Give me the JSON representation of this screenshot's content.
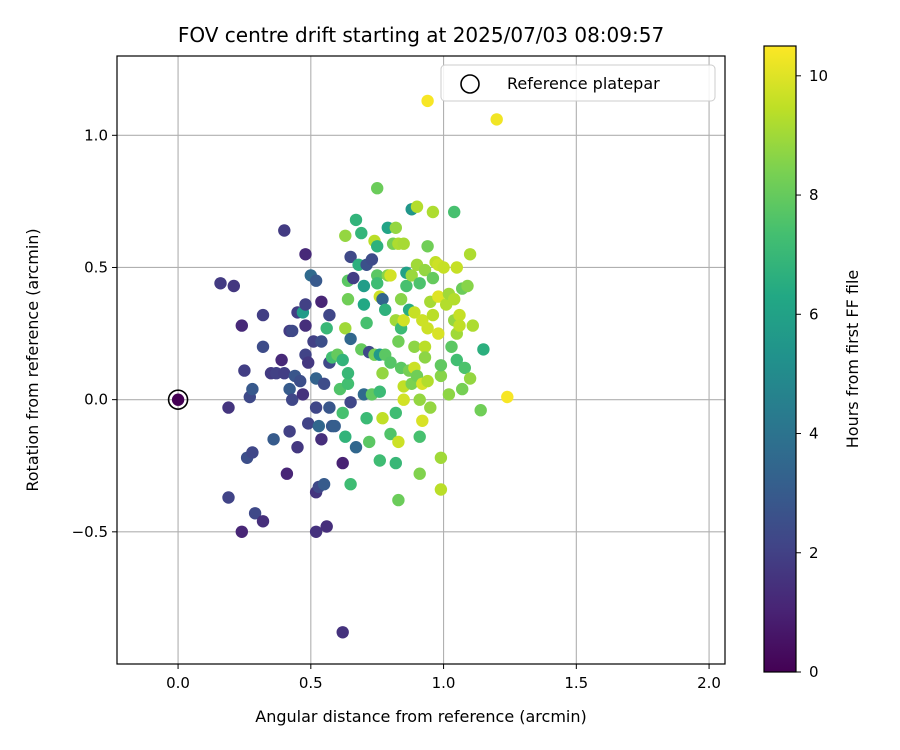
{
  "chart_data": {
    "type": "scatter",
    "title": "FOV centre drift starting at 2025/07/03 08:09:57",
    "xlabel": "Angular distance from reference (arcmin)",
    "ylabel": "Rotation from reference (arcmin)",
    "xlim": [
      -0.23,
      2.06
    ],
    "ylim": [
      -1.0,
      1.3
    ],
    "xticks": [
      0.0,
      0.5,
      1.0,
      1.5,
      2.0
    ],
    "xtick_labels": [
      "0.0",
      "0.5",
      "1.0",
      "1.5",
      "2.0"
    ],
    "yticks": [
      -0.5,
      0.0,
      0.5,
      1.0
    ],
    "ytick_labels": [
      "−0.5",
      "0.0",
      "0.5",
      "1.0"
    ],
    "grid": true,
    "legend": {
      "position": "top-right",
      "entries": [
        "Reference platepar"
      ]
    },
    "reference_point": {
      "x": 0.0,
      "y": 0.0
    },
    "colorbar": {
      "label": "Hours from first FF file",
      "colormap": "viridis",
      "range": [
        0,
        10.5
      ],
      "ticks": [
        0,
        2,
        4,
        6,
        8,
        10
      ],
      "tick_labels": [
        "0",
        "2",
        "4",
        "6",
        "8",
        "10"
      ]
    },
    "points": [
      {
        "x": 0.0,
        "y": 0.0,
        "c": 0.0
      },
      {
        "x": 0.19,
        "y": -0.03,
        "c": 1.6
      },
      {
        "x": 0.16,
        "y": 0.44,
        "c": 1.8
      },
      {
        "x": 0.21,
        "y": 0.43,
        "c": 1.7
      },
      {
        "x": 0.24,
        "y": 0.28,
        "c": 1.2
      },
      {
        "x": 0.25,
        "y": 0.11,
        "c": 1.9
      },
      {
        "x": 0.27,
        "y": 0.01,
        "c": 2.3
      },
      {
        "x": 0.28,
        "y": 0.04,
        "c": 2.9
      },
      {
        "x": 0.32,
        "y": 0.32,
        "c": 1.9
      },
      {
        "x": 0.32,
        "y": 0.2,
        "c": 2.4
      },
      {
        "x": 0.19,
        "y": -0.37,
        "c": 2.1
      },
      {
        "x": 0.24,
        "y": -0.5,
        "c": 1.1
      },
      {
        "x": 0.26,
        "y": -0.22,
        "c": 2.5
      },
      {
        "x": 0.28,
        "y": -0.2,
        "c": 2.2
      },
      {
        "x": 0.29,
        "y": -0.43,
        "c": 2.3
      },
      {
        "x": 0.32,
        "y": -0.46,
        "c": 1.4
      },
      {
        "x": 0.36,
        "y": -0.15,
        "c": 3.0
      },
      {
        "x": 0.35,
        "y": 0.1,
        "c": 1.8
      },
      {
        "x": 0.37,
        "y": 0.1,
        "c": 2.0
      },
      {
        "x": 0.39,
        "y": 0.15,
        "c": 1.2
      },
      {
        "x": 0.4,
        "y": 0.1,
        "c": 1.9
      },
      {
        "x": 0.4,
        "y": 0.64,
        "c": 1.8
      },
      {
        "x": 0.41,
        "y": -0.28,
        "c": 1.1
      },
      {
        "x": 0.42,
        "y": 0.04,
        "c": 3.0
      },
      {
        "x": 0.42,
        "y": -0.12,
        "c": 2.0
      },
      {
        "x": 0.42,
        "y": 0.26,
        "c": 1.8
      },
      {
        "x": 0.43,
        "y": 0.26,
        "c": 2.3
      },
      {
        "x": 0.43,
        "y": 0.0,
        "c": 2.2
      },
      {
        "x": 0.44,
        "y": 0.09,
        "c": 2.8
      },
      {
        "x": 0.45,
        "y": 0.33,
        "c": 1.9
      },
      {
        "x": 0.45,
        "y": -0.18,
        "c": 1.7
      },
      {
        "x": 0.46,
        "y": 0.07,
        "c": 2.5
      },
      {
        "x": 0.47,
        "y": 0.02,
        "c": 1.5
      },
      {
        "x": 0.47,
        "y": 0.33,
        "c": 5.7
      },
      {
        "x": 0.48,
        "y": 0.28,
        "c": 1.4
      },
      {
        "x": 0.48,
        "y": 0.36,
        "c": 2.0
      },
      {
        "x": 0.48,
        "y": 0.17,
        "c": 2.1
      },
      {
        "x": 0.49,
        "y": 0.14,
        "c": 1.7
      },
      {
        "x": 0.48,
        "y": 0.55,
        "c": 1.2
      },
      {
        "x": 0.49,
        "y": -0.09,
        "c": 2.1
      },
      {
        "x": 0.5,
        "y": 0.47,
        "c": 3.6
      },
      {
        "x": 0.51,
        "y": 0.22,
        "c": 2.0
      },
      {
        "x": 0.52,
        "y": 0.08,
        "c": 3.3
      },
      {
        "x": 0.52,
        "y": -0.03,
        "c": 2.2
      },
      {
        "x": 0.52,
        "y": 0.45,
        "c": 2.9
      },
      {
        "x": 0.52,
        "y": -0.35,
        "c": 1.6
      },
      {
        "x": 0.52,
        "y": -0.5,
        "c": 1.5
      },
      {
        "x": 0.53,
        "y": -0.33,
        "c": 2.3
      },
      {
        "x": 0.53,
        "y": -0.1,
        "c": 3.5
      },
      {
        "x": 0.54,
        "y": 0.37,
        "c": 1.1
      },
      {
        "x": 0.54,
        "y": 0.22,
        "c": 2.5
      },
      {
        "x": 0.54,
        "y": -0.15,
        "c": 1.4
      },
      {
        "x": 0.55,
        "y": 0.06,
        "c": 2.4
      },
      {
        "x": 0.55,
        "y": -0.32,
        "c": 3.0
      },
      {
        "x": 0.56,
        "y": 0.27,
        "c": 7.0
      },
      {
        "x": 0.56,
        "y": -0.48,
        "c": 1.4
      },
      {
        "x": 0.57,
        "y": 0.32,
        "c": 2.2
      },
      {
        "x": 0.57,
        "y": 0.14,
        "c": 2.3
      },
      {
        "x": 0.57,
        "y": -0.03,
        "c": 2.8
      },
      {
        "x": 0.58,
        "y": -0.1,
        "c": 2.9
      },
      {
        "x": 0.58,
        "y": 0.16,
        "c": 7.3
      },
      {
        "x": 0.59,
        "y": -0.1,
        "c": 3.1
      },
      {
        "x": 0.6,
        "y": 0.17,
        "c": 8.0
      },
      {
        "x": 0.61,
        "y": 0.04,
        "c": 7.6
      },
      {
        "x": 0.62,
        "y": -0.05,
        "c": 7.4
      },
      {
        "x": 0.62,
        "y": 0.15,
        "c": 6.8
      },
      {
        "x": 0.62,
        "y": -0.24,
        "c": 1.0
      },
      {
        "x": 0.62,
        "y": -0.88,
        "c": 1.5
      },
      {
        "x": 0.63,
        "y": 0.27,
        "c": 9.0
      },
      {
        "x": 0.63,
        "y": 0.62,
        "c": 8.8
      },
      {
        "x": 0.63,
        "y": -0.14,
        "c": 6.8
      },
      {
        "x": 0.64,
        "y": 0.06,
        "c": 7.3
      },
      {
        "x": 0.64,
        "y": 0.1,
        "c": 7.0
      },
      {
        "x": 0.64,
        "y": 0.45,
        "c": 7.8
      },
      {
        "x": 0.64,
        "y": 0.38,
        "c": 8.2
      },
      {
        "x": 0.65,
        "y": -0.32,
        "c": 7.2
      },
      {
        "x": 0.65,
        "y": 0.23,
        "c": 3.5
      },
      {
        "x": 0.65,
        "y": 0.54,
        "c": 2.3
      },
      {
        "x": 0.65,
        "y": -0.01,
        "c": 2.2
      },
      {
        "x": 0.66,
        "y": 0.46,
        "c": 1.9
      },
      {
        "x": 0.67,
        "y": -0.18,
        "c": 3.5
      },
      {
        "x": 0.67,
        "y": 0.68,
        "c": 6.8
      },
      {
        "x": 0.68,
        "y": 0.51,
        "c": 6.6
      },
      {
        "x": 0.69,
        "y": 0.63,
        "c": 6.9
      },
      {
        "x": 0.69,
        "y": 0.19,
        "c": 8.0
      },
      {
        "x": 0.7,
        "y": 0.02,
        "c": 3.6
      },
      {
        "x": 0.7,
        "y": 0.43,
        "c": 5.8
      },
      {
        "x": 0.7,
        "y": 0.36,
        "c": 6.3
      },
      {
        "x": 0.71,
        "y": 0.51,
        "c": 2.6
      },
      {
        "x": 0.71,
        "y": -0.07,
        "c": 7.1
      },
      {
        "x": 0.71,
        "y": 0.29,
        "c": 7.4
      },
      {
        "x": 0.72,
        "y": 0.18,
        "c": 2.3
      },
      {
        "x": 0.72,
        "y": -0.16,
        "c": 7.8
      },
      {
        "x": 0.73,
        "y": 0.53,
        "c": 2.4
      },
      {
        "x": 0.73,
        "y": 0.02,
        "c": 7.9
      },
      {
        "x": 0.74,
        "y": 0.17,
        "c": 8.3
      },
      {
        "x": 0.74,
        "y": 0.6,
        "c": 9.4
      },
      {
        "x": 0.75,
        "y": 0.58,
        "c": 6.7
      },
      {
        "x": 0.75,
        "y": 0.47,
        "c": 7.8
      },
      {
        "x": 0.75,
        "y": 0.8,
        "c": 8.1
      },
      {
        "x": 0.75,
        "y": 0.44,
        "c": 7.2
      },
      {
        "x": 0.76,
        "y": 0.39,
        "c": 9.7
      },
      {
        "x": 0.76,
        "y": 0.17,
        "c": 5.6
      },
      {
        "x": 0.76,
        "y": 0.03,
        "c": 7.1
      },
      {
        "x": 0.76,
        "y": -0.23,
        "c": 7.2
      },
      {
        "x": 0.77,
        "y": -0.07,
        "c": 9.5
      },
      {
        "x": 0.77,
        "y": 0.38,
        "c": 3.4
      },
      {
        "x": 0.77,
        "y": 0.1,
        "c": 8.8
      },
      {
        "x": 0.78,
        "y": 0.34,
        "c": 6.7
      },
      {
        "x": 0.78,
        "y": 0.17,
        "c": 7.8
      },
      {
        "x": 0.79,
        "y": 0.47,
        "c": 8.6
      },
      {
        "x": 0.79,
        "y": 0.65,
        "c": 6.1
      },
      {
        "x": 0.8,
        "y": 0.47,
        "c": 9.8
      },
      {
        "x": 0.8,
        "y": -0.13,
        "c": 7.6
      },
      {
        "x": 0.8,
        "y": 0.14,
        "c": 7.7
      },
      {
        "x": 0.81,
        "y": 0.59,
        "c": 8.3
      },
      {
        "x": 0.82,
        "y": 0.65,
        "c": 8.8
      },
      {
        "x": 0.82,
        "y": 0.3,
        "c": 9.0
      },
      {
        "x": 0.82,
        "y": -0.05,
        "c": 7.2
      },
      {
        "x": 0.82,
        "y": -0.24,
        "c": 7.0
      },
      {
        "x": 0.83,
        "y": 0.22,
        "c": 8.2
      },
      {
        "x": 0.83,
        "y": 0.59,
        "c": 9.2
      },
      {
        "x": 0.83,
        "y": -0.38,
        "c": 8.1
      },
      {
        "x": 0.83,
        "y": -0.16,
        "c": 9.7
      },
      {
        "x": 0.84,
        "y": 0.27,
        "c": 7.1
      },
      {
        "x": 0.84,
        "y": 0.12,
        "c": 7.8
      },
      {
        "x": 0.84,
        "y": 0.38,
        "c": 8.6
      },
      {
        "x": 0.85,
        "y": 0.0,
        "c": 9.8
      },
      {
        "x": 0.85,
        "y": 0.05,
        "c": 9.5
      },
      {
        "x": 0.85,
        "y": 0.59,
        "c": 9.1
      },
      {
        "x": 0.85,
        "y": 0.3,
        "c": 9.8
      },
      {
        "x": 0.86,
        "y": 0.43,
        "c": 7.4
      },
      {
        "x": 0.86,
        "y": 0.48,
        "c": 6.0
      },
      {
        "x": 0.87,
        "y": 0.34,
        "c": 6.5
      },
      {
        "x": 0.87,
        "y": 0.11,
        "c": 8.3
      },
      {
        "x": 0.88,
        "y": 0.72,
        "c": 5.5
      },
      {
        "x": 0.88,
        "y": 0.47,
        "c": 8.9
      },
      {
        "x": 0.88,
        "y": 0.06,
        "c": 8.4
      },
      {
        "x": 0.89,
        "y": 0.33,
        "c": 9.6
      },
      {
        "x": 0.89,
        "y": 0.2,
        "c": 8.7
      },
      {
        "x": 0.89,
        "y": 0.12,
        "c": 9.7
      },
      {
        "x": 0.9,
        "y": 0.51,
        "c": 9.0
      },
      {
        "x": 0.9,
        "y": 0.73,
        "c": 9.3
      },
      {
        "x": 0.9,
        "y": 0.09,
        "c": 8.2
      },
      {
        "x": 0.91,
        "y": -0.14,
        "c": 7.4
      },
      {
        "x": 0.91,
        "y": 0.44,
        "c": 7.5
      },
      {
        "x": 0.91,
        "y": 0.0,
        "c": 8.8
      },
      {
        "x": 0.91,
        "y": -0.28,
        "c": 8.5
      },
      {
        "x": 0.92,
        "y": 0.06,
        "c": 9.9
      },
      {
        "x": 0.92,
        "y": 0.3,
        "c": 9.7
      },
      {
        "x": 0.92,
        "y": -0.08,
        "c": 9.9
      },
      {
        "x": 0.93,
        "y": 0.2,
        "c": 9.4
      },
      {
        "x": 0.93,
        "y": 0.49,
        "c": 8.8
      },
      {
        "x": 0.93,
        "y": 0.16,
        "c": 8.7
      },
      {
        "x": 0.94,
        "y": 0.27,
        "c": 9.7
      },
      {
        "x": 0.94,
        "y": 0.07,
        "c": 9.3
      },
      {
        "x": 0.94,
        "y": 0.58,
        "c": 8.2
      },
      {
        "x": 0.94,
        "y": 1.13,
        "c": 10.4
      },
      {
        "x": 0.95,
        "y": 0.37,
        "c": 9.1
      },
      {
        "x": 0.95,
        "y": -0.03,
        "c": 8.8
      },
      {
        "x": 0.96,
        "y": 0.71,
        "c": 9.2
      },
      {
        "x": 0.96,
        "y": 0.32,
        "c": 9.4
      },
      {
        "x": 0.96,
        "y": 0.46,
        "c": 8.0
      },
      {
        "x": 0.97,
        "y": 0.52,
        "c": 9.5
      },
      {
        "x": 0.98,
        "y": 0.39,
        "c": 10.0
      },
      {
        "x": 0.98,
        "y": 0.25,
        "c": 9.9
      },
      {
        "x": 0.98,
        "y": 0.51,
        "c": 9.7
      },
      {
        "x": 0.99,
        "y": -0.22,
        "c": 9.0
      },
      {
        "x": 0.99,
        "y": 0.09,
        "c": 8.6
      },
      {
        "x": 0.99,
        "y": -0.34,
        "c": 9.4
      },
      {
        "x": 0.99,
        "y": 0.13,
        "c": 7.9
      },
      {
        "x": 1.0,
        "y": 0.5,
        "c": 9.6
      },
      {
        "x": 1.01,
        "y": 0.36,
        "c": 9.3
      },
      {
        "x": 1.02,
        "y": 0.02,
        "c": 8.7
      },
      {
        "x": 1.02,
        "y": 0.4,
        "c": 9.0
      },
      {
        "x": 1.03,
        "y": 0.2,
        "c": 7.8
      },
      {
        "x": 1.04,
        "y": 0.3,
        "c": 8.8
      },
      {
        "x": 1.04,
        "y": 0.71,
        "c": 7.4
      },
      {
        "x": 1.04,
        "y": 0.38,
        "c": 9.3
      },
      {
        "x": 1.05,
        "y": 0.5,
        "c": 9.6
      },
      {
        "x": 1.05,
        "y": 0.25,
        "c": 9.0
      },
      {
        "x": 1.05,
        "y": 0.15,
        "c": 7.3
      },
      {
        "x": 1.06,
        "y": 0.32,
        "c": 9.6
      },
      {
        "x": 1.06,
        "y": 0.28,
        "c": 9.5
      },
      {
        "x": 1.07,
        "y": 0.42,
        "c": 8.1
      },
      {
        "x": 1.07,
        "y": 0.04,
        "c": 8.3
      },
      {
        "x": 1.08,
        "y": 0.12,
        "c": 7.5
      },
      {
        "x": 1.09,
        "y": 0.43,
        "c": 8.6
      },
      {
        "x": 1.1,
        "y": 0.08,
        "c": 8.8
      },
      {
        "x": 1.1,
        "y": 0.55,
        "c": 9.2
      },
      {
        "x": 1.11,
        "y": 0.28,
        "c": 9.2
      },
      {
        "x": 1.14,
        "y": -0.04,
        "c": 8.2
      },
      {
        "x": 1.15,
        "y": 0.19,
        "c": 6.6
      },
      {
        "x": 1.2,
        "y": 1.06,
        "c": 10.3
      },
      {
        "x": 1.24,
        "y": 0.01,
        "c": 10.4
      }
    ]
  }
}
